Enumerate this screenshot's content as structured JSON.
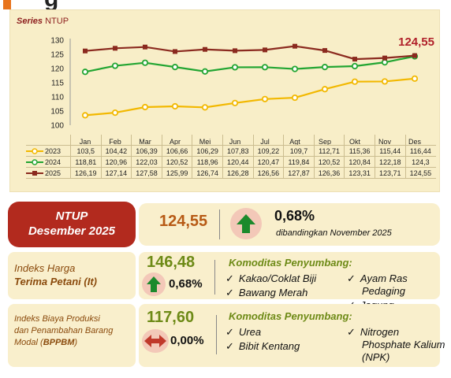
{
  "header": {
    "title_fragment": "g",
    "accent_color": "#e8741d"
  },
  "chart_data": {
    "type": "line",
    "title_series": "Series",
    "title_name": "NTUP",
    "categories": [
      "Jan",
      "Feb",
      "Mar",
      "Apr",
      "Mei",
      "Jun",
      "Jul",
      "Agt",
      "Sep",
      "Okt",
      "Nov",
      "Des"
    ],
    "ylim": [
      100,
      130
    ],
    "yticks": [
      "100",
      "105",
      "110",
      "115",
      "120",
      "125",
      "130"
    ],
    "last_value_label": "124,55",
    "series": [
      {
        "name": "2023",
        "color": "#f2b800",
        "values": [
          103.5,
          104.42,
          106.39,
          106.66,
          106.29,
          107.83,
          109.22,
          109.7,
          112.71,
          115.36,
          115.44,
          116.44
        ],
        "labels": [
          "103,5",
          "104,42",
          "106,39",
          "106,66",
          "106,29",
          "107,83",
          "109,22",
          "109,7",
          "112,71",
          "115,36",
          "115,44",
          "116,44"
        ]
      },
      {
        "name": "2024",
        "color": "#22a532",
        "values": [
          118.81,
          120.96,
          122.03,
          120.52,
          118.96,
          120.44,
          120.47,
          119.84,
          120.52,
          120.84,
          122.18,
          124.3
        ],
        "labels": [
          "118,81",
          "120,96",
          "122,03",
          "120,52",
          "118,96",
          "120,44",
          "120,47",
          "119,84",
          "120,52",
          "120,84",
          "122,18",
          "124,3"
        ]
      },
      {
        "name": "2025",
        "color": "#8b2a1f",
        "values": [
          126.19,
          127.14,
          127.58,
          125.99,
          126.74,
          126.28,
          126.56,
          127.87,
          126.36,
          123.31,
          123.71,
          124.55
        ],
        "labels": [
          "126,19",
          "127,14",
          "127,58",
          "125,99",
          "126,74",
          "126,28",
          "126,56",
          "127,87",
          "126,36",
          "123,31",
          "123,71",
          "124,55"
        ]
      }
    ]
  },
  "ntup_card": {
    "line1": "NTUP",
    "line2": "Desember 2025"
  },
  "summary": {
    "value": "124,55",
    "change": "0,68%",
    "compare_text": "dibandingkan November 2025"
  },
  "it": {
    "title1": "Indeks Harga",
    "title2": "Terima Petani (It)",
    "value": "146,48",
    "change": "0,68%",
    "kom_title": "Komoditas Penyumbang:",
    "items": [
      "Kakao/Coklat Biji",
      "Bawang Merah",
      "Ayam Ras",
      "Pedaging",
      "Jagung"
    ]
  },
  "bp": {
    "title1": "Indeks Biaya Produksi",
    "title2": "dan Penambahan Barang",
    "title3a": "Modal (",
    "title3b": "BPPBM",
    "title3c": ")",
    "value": "117,60",
    "change": "0,00%",
    "kom_title": "Komoditas Penyumbang:",
    "items": [
      "Urea",
      "Bibit Kentang",
      "Nitrogen",
      "Phosphate Kalium",
      "(NPK)"
    ]
  },
  "colors": {
    "up": "#1c8a2c",
    "flat": "#c0392b",
    "badge_bg": "#f3c8b8"
  }
}
